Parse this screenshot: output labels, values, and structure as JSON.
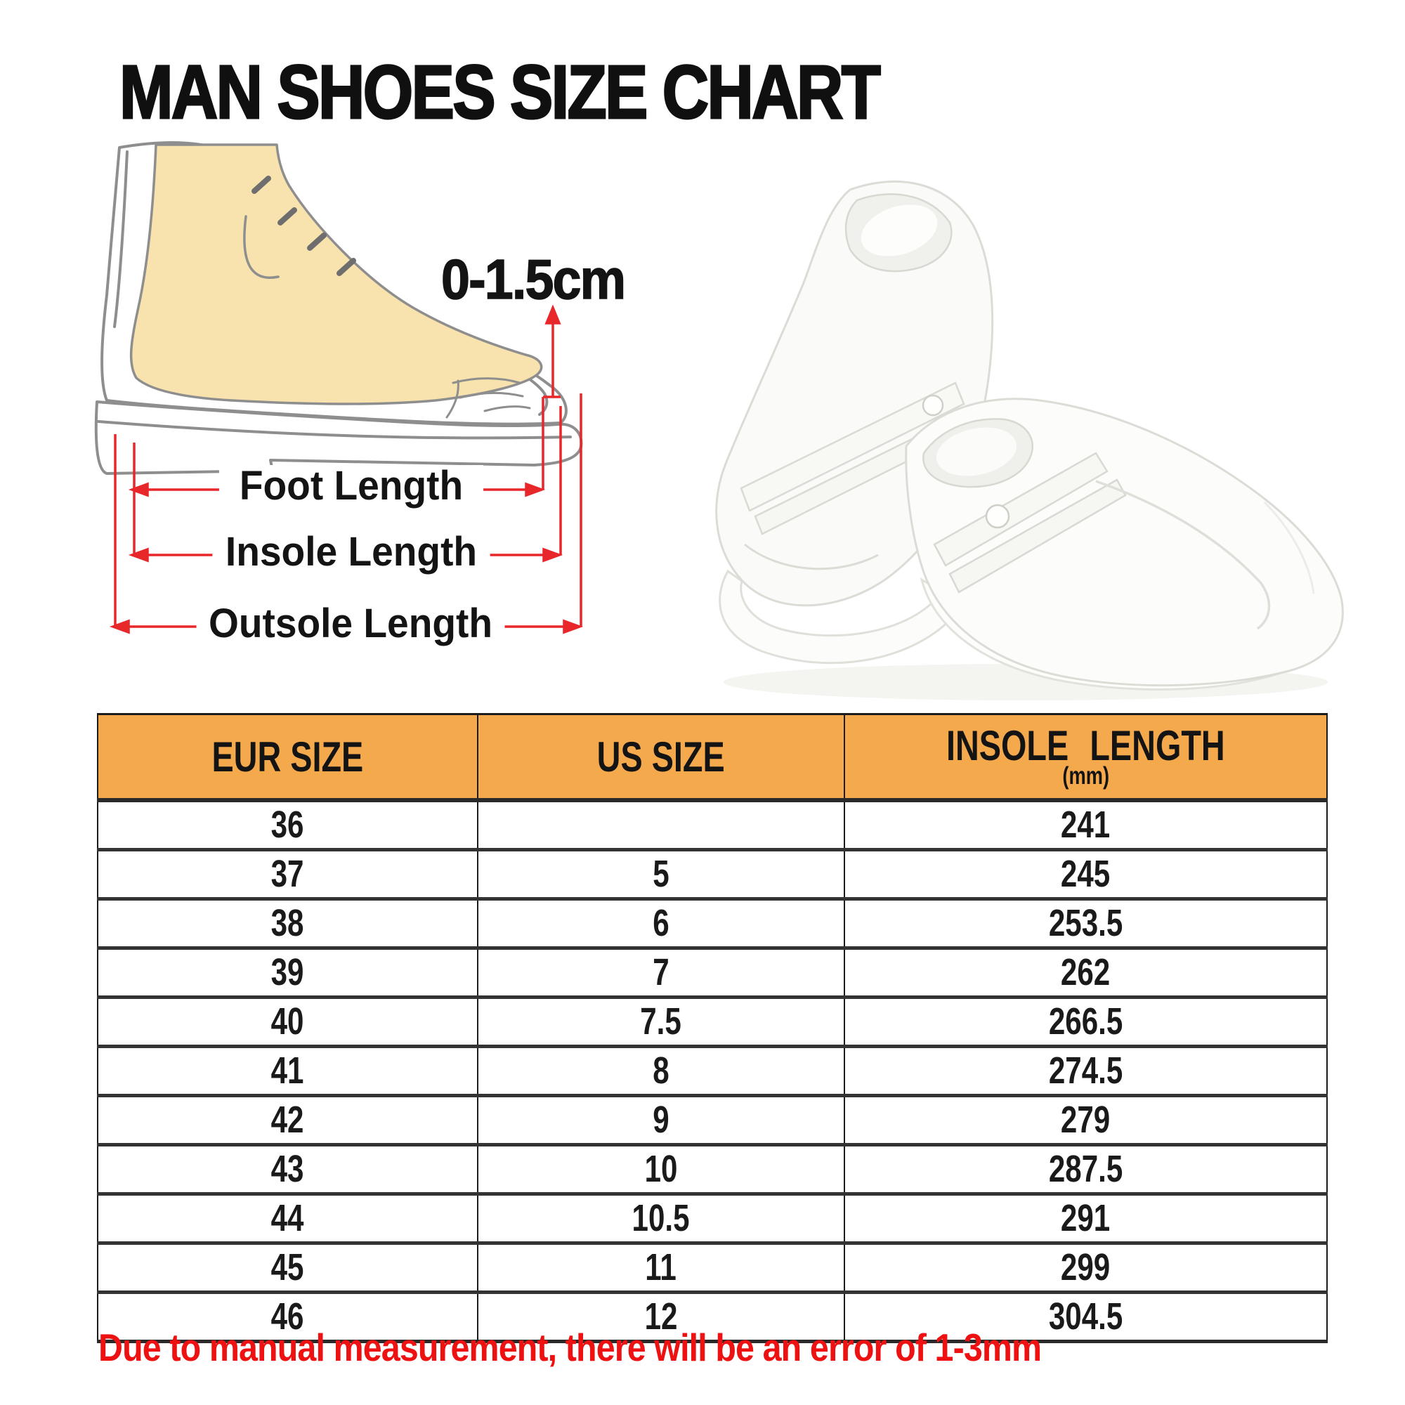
{
  "page": {
    "title": "MAN SHOES SIZE CHART",
    "footnote": "Due to manual measurement, there will be an error of 1-3mm"
  },
  "diagram": {
    "toe_allowance": "0-1.5cm",
    "foot_length_label": "Foot Length",
    "insole_length_label": "Insole Length",
    "outsole_length_label": "Outsole Length",
    "colors": {
      "foot_fill": "#F8E3AE",
      "outline": "#8E8E8E",
      "arrow": "#E8272B"
    }
  },
  "photo": {
    "name": "white-canvas-loafers"
  },
  "chart_data": {
    "type": "table",
    "title": "MAN SHOES SIZE CHART",
    "columns": [
      "EUR SIZE",
      "US SIZE",
      "INSOLE LENGTH (mm)"
    ],
    "header_labels": [
      "EUR SIZE",
      "US SIZE",
      "INSOLE LENGTH"
    ],
    "unit_note": "(mm)",
    "rows": [
      [
        "36",
        "",
        "241"
      ],
      [
        "37",
        "5",
        "245"
      ],
      [
        "38",
        "6",
        "253.5"
      ],
      [
        "39",
        "7",
        "262"
      ],
      [
        "40",
        "7.5",
        "266.5"
      ],
      [
        "41",
        "8",
        "274.5"
      ],
      [
        "42",
        "9",
        "279"
      ],
      [
        "43",
        "10",
        "287.5"
      ],
      [
        "44",
        "10.5",
        "291"
      ],
      [
        "45",
        "11",
        "299"
      ],
      [
        "46",
        "12",
        "304.5"
      ]
    ],
    "styles": {
      "header_bg": "#F4A94D",
      "border": "#1c1c1c",
      "footnote_red": "#EE1111"
    }
  }
}
